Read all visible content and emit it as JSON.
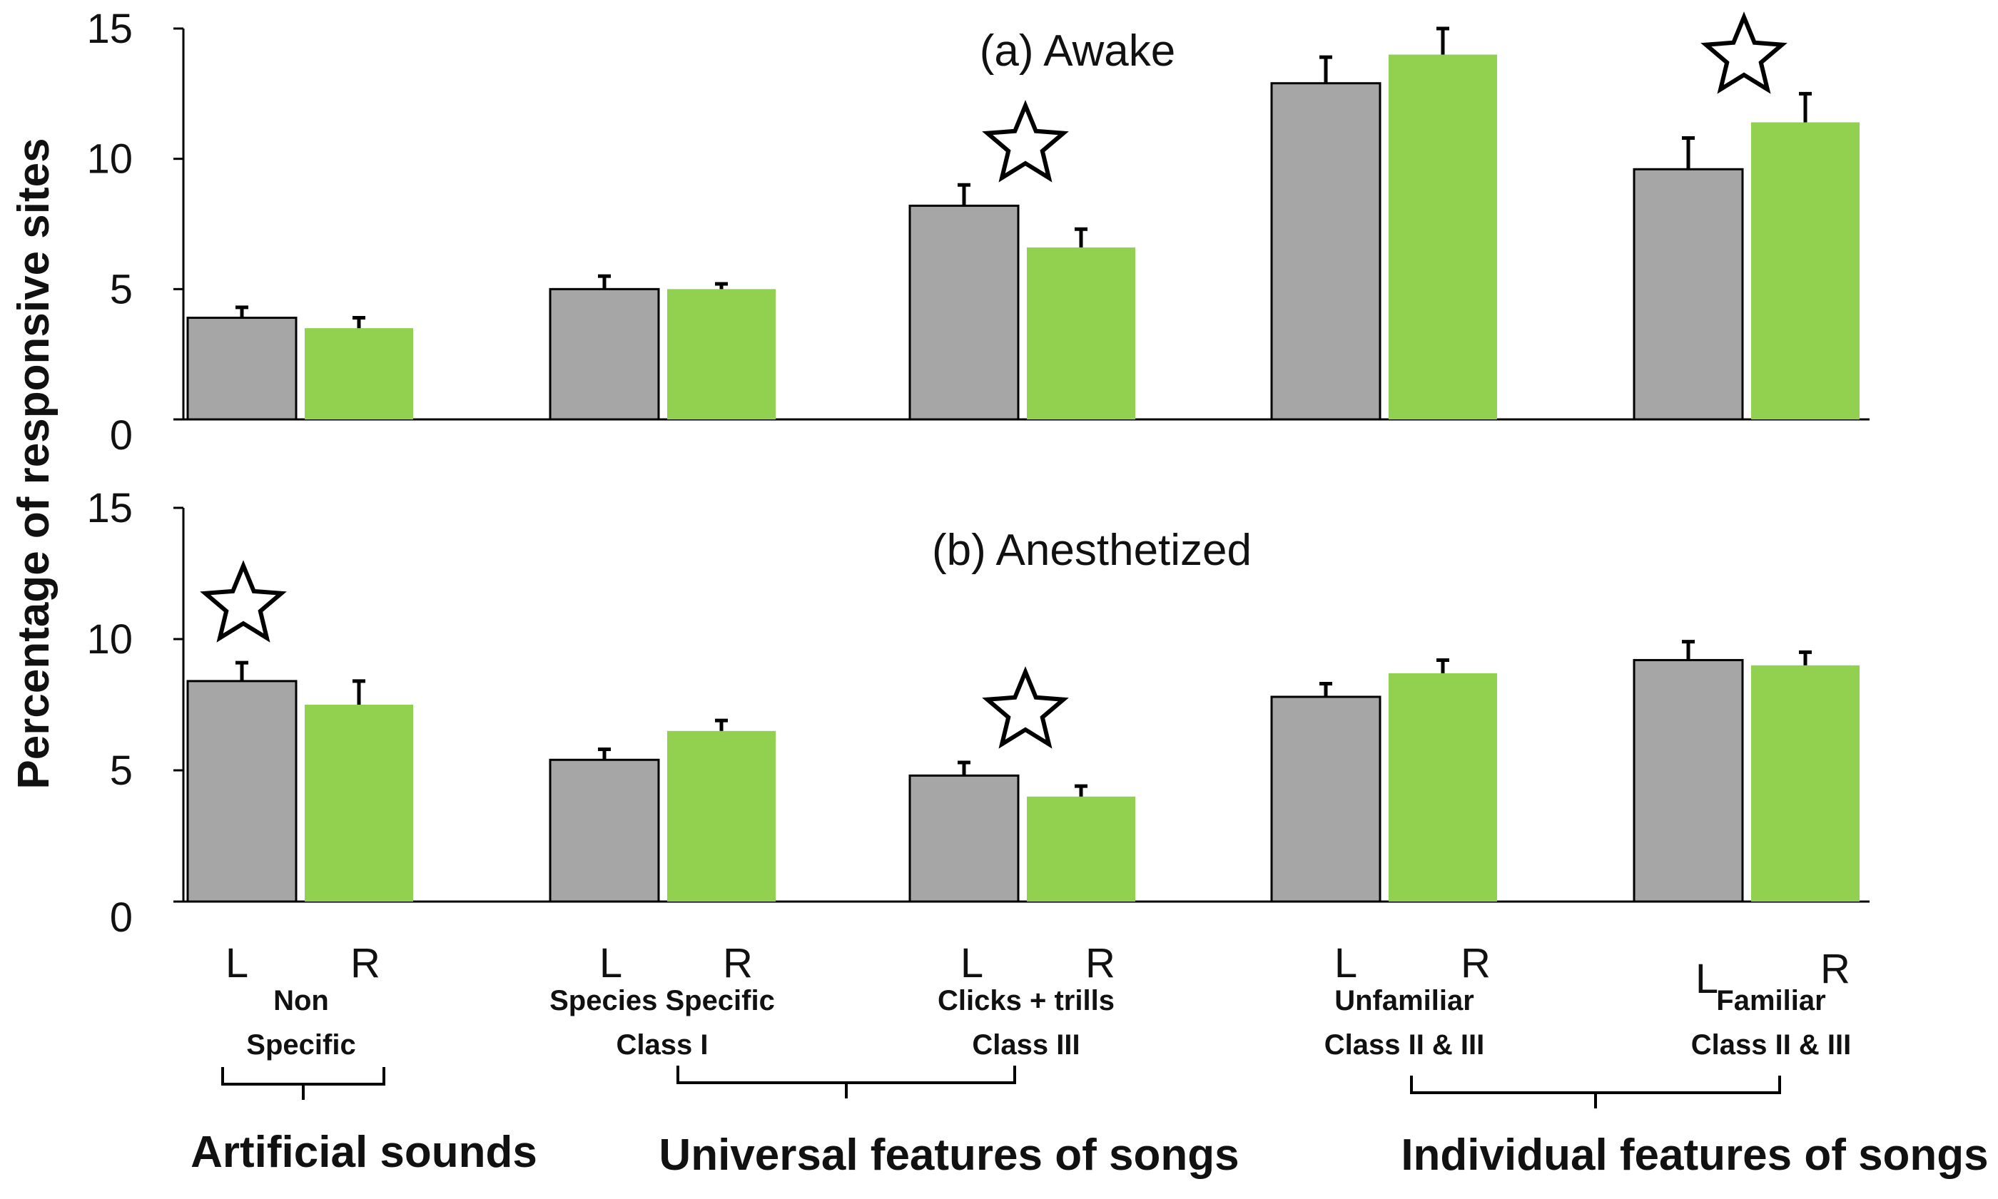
{
  "chart_data": [
    {
      "type": "bar",
      "title": "(a) Awake",
      "ylabel": "Percentage of responsive sites",
      "ylim": [
        0,
        15
      ],
      "yticks": [
        0,
        5,
        10,
        15
      ],
      "categories": [
        "Non Specific",
        "Species Specific Class I",
        "Clicks + trills Class III",
        "Unfamiliar Class II & III",
        "Familiar Class II & III"
      ],
      "series": [
        {
          "name": "L",
          "color": "#a6a6a6",
          "values": [
            3.9,
            5.0,
            8.2,
            12.9,
            9.6
          ],
          "errors": [
            0.4,
            0.5,
            0.8,
            1.0,
            1.2
          ]
        },
        {
          "name": "R",
          "color": "#92d050",
          "values": [
            3.5,
            5.0,
            6.6,
            14.0,
            11.4
          ],
          "errors": [
            0.4,
            0.2,
            0.7,
            1.0,
            1.1
          ]
        }
      ],
      "significant": [
        2,
        4
      ]
    },
    {
      "type": "bar",
      "title": "(b) Anesthetized",
      "ylabel": "Percentage of responsive sites",
      "ylim": [
        0,
        15
      ],
      "yticks": [
        0,
        5,
        10,
        15
      ],
      "categories": [
        "Non Specific",
        "Species Specific Class I",
        "Clicks + trills Class III",
        "Unfamiliar Class II & III",
        "Familiar Class II & III"
      ],
      "series": [
        {
          "name": "L",
          "color": "#a6a6a6",
          "values": [
            8.4,
            5.4,
            4.8,
            7.8,
            9.2
          ],
          "errors": [
            0.7,
            0.4,
            0.5,
            0.5,
            0.7
          ]
        },
        {
          "name": "R",
          "color": "#92d050",
          "values": [
            7.5,
            6.5,
            4.0,
            8.7,
            9.0
          ],
          "errors": [
            0.9,
            0.4,
            0.4,
            0.5,
            0.5
          ]
        }
      ],
      "significant": [
        0,
        2
      ]
    }
  ],
  "x_axis": {
    "pair_labels": [
      "L",
      "R"
    ],
    "category_labels": [
      [
        "Non",
        "Specific"
      ],
      [
        "Species Specific",
        "Class I"
      ],
      [
        "Clicks + trills",
        "Class III"
      ],
      [
        "Unfamiliar",
        "Class II & III"
      ],
      [
        "Familiar",
        "Class II & III"
      ]
    ],
    "groups": [
      "Artificial sounds",
      "Universal features of songs",
      "Individual features of songs"
    ]
  }
}
